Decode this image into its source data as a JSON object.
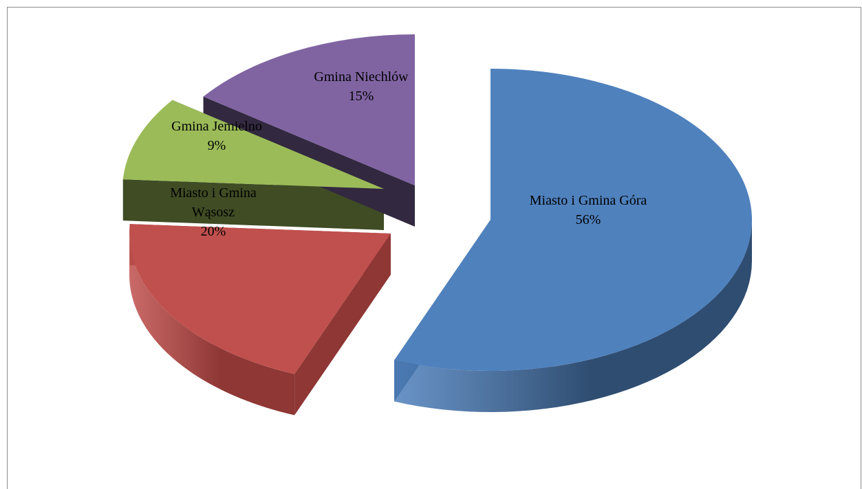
{
  "chart_data": {
    "type": "pie",
    "title": "",
    "style": "3d-exploded",
    "categories": [
      "Miasto i Gmina Góra",
      "Miasto i Gmina Wąsosz",
      "Gmina Jemielno",
      "Gmina Niechlów"
    ],
    "values": [
      56,
      20,
      9,
      15
    ],
    "labels": [
      [
        "Miasto i Gmina Góra",
        "56%"
      ],
      [
        "Miasto i Gmina",
        "Wąsosz",
        "20%"
      ],
      [
        "Gmina Jemielno",
        "9%"
      ],
      [
        "Gmina Niechlów",
        "15%"
      ]
    ],
    "colors": [
      "#4F81BD",
      "#C0504D",
      "#9BBB59",
      "#8064A2"
    ],
    "side_colors": [
      "#2F4D71",
      "#8E3735",
      "#3F4C24",
      "#32283F"
    ],
    "legend": "none"
  }
}
